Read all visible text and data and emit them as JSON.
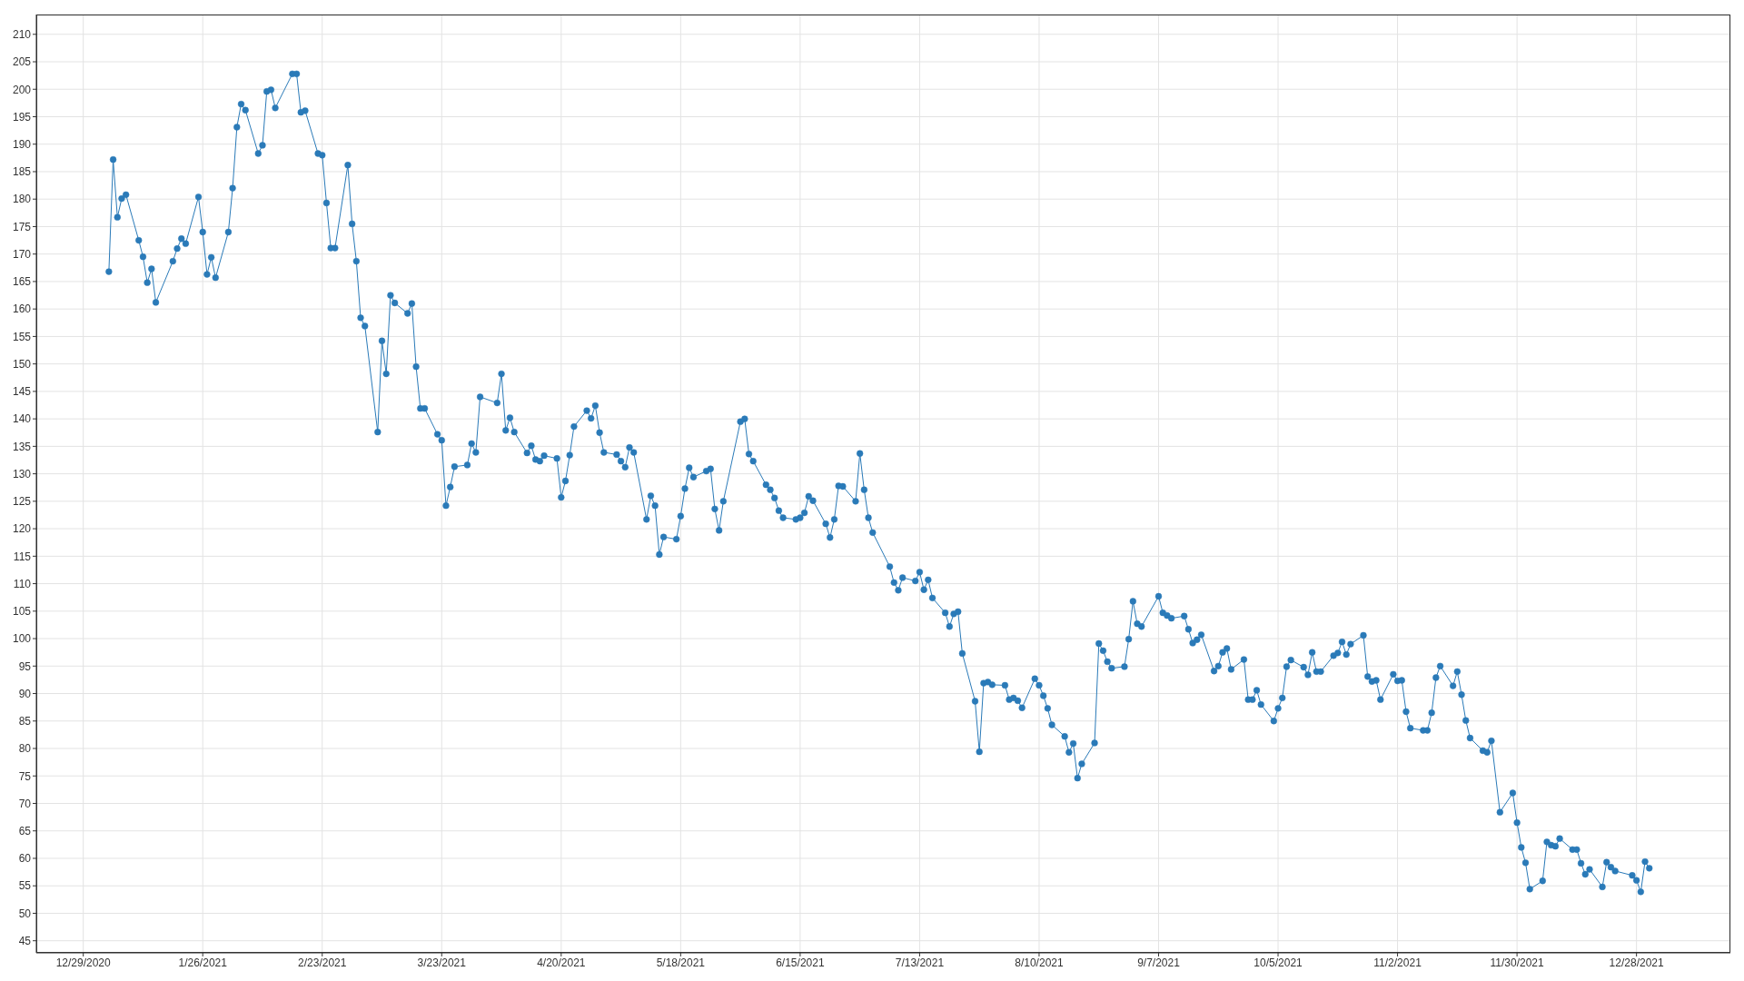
{
  "chart_data": {
    "type": "line",
    "color": "#2a7ab8",
    "marker": "circle",
    "line_style": "solid",
    "grid": true,
    "xlim": [
      "2020-12-18",
      "2022-01-19"
    ],
    "xticks": [
      {
        "value": "2020-12-29",
        "label": "12/29/2020"
      },
      {
        "value": "2021-01-26",
        "label": "1/26/2021"
      },
      {
        "value": "2021-02-23",
        "label": "2/23/2021"
      },
      {
        "value": "2021-03-23",
        "label": "3/23/2021"
      },
      {
        "value": "2021-04-20",
        "label": "4/20/2021"
      },
      {
        "value": "2021-05-18",
        "label": "5/18/2021"
      },
      {
        "value": "2021-06-15",
        "label": "6/15/2021"
      },
      {
        "value": "2021-07-13",
        "label": "7/13/2021"
      },
      {
        "value": "2021-08-10",
        "label": "8/10/2021"
      },
      {
        "value": "2021-09-07",
        "label": "9/7/2021"
      },
      {
        "value": "2021-10-05",
        "label": "10/5/2021"
      },
      {
        "value": "2021-11-02",
        "label": "11/2/2021"
      },
      {
        "value": "2021-11-30",
        "label": "11/30/2021"
      },
      {
        "value": "2021-12-28",
        "label": "12/28/2021"
      }
    ],
    "ylim": [
      42.8,
      213.6
    ],
    "yticks": [
      45,
      50,
      55,
      60,
      65,
      70,
      75,
      80,
      85,
      90,
      95,
      100,
      105,
      110,
      115,
      120,
      125,
      130,
      135,
      140,
      145,
      150,
      155,
      160,
      165,
      170,
      175,
      180,
      185,
      190,
      195,
      200,
      205,
      210
    ],
    "x": [
      "2021-01-04",
      "2021-01-05",
      "2021-01-06",
      "2021-01-07",
      "2021-01-08",
      "2021-01-11",
      "2021-01-12",
      "2021-01-13",
      "2021-01-14",
      "2021-01-15",
      "2021-01-19",
      "2021-01-20",
      "2021-01-21",
      "2021-01-22",
      "2021-01-25",
      "2021-01-26",
      "2021-01-27",
      "2021-01-28",
      "2021-01-29",
      "2021-02-01",
      "2021-02-02",
      "2021-02-03",
      "2021-02-04",
      "2021-02-05",
      "2021-02-08",
      "2021-02-09",
      "2021-02-10",
      "2021-02-11",
      "2021-02-12",
      "2021-02-16",
      "2021-02-17",
      "2021-02-18",
      "2021-02-19",
      "2021-02-22",
      "2021-02-23",
      "2021-02-24",
      "2021-02-25",
      "2021-02-26",
      "2021-03-01",
      "2021-03-02",
      "2021-03-03",
      "2021-03-04",
      "2021-03-05",
      "2021-03-08",
      "2021-03-09",
      "2021-03-10",
      "2021-03-11",
      "2021-03-12",
      "2021-03-15",
      "2021-03-16",
      "2021-03-17",
      "2021-03-18",
      "2021-03-19",
      "2021-03-22",
      "2021-03-23",
      "2021-03-24",
      "2021-03-25",
      "2021-03-26",
      "2021-03-29",
      "2021-03-30",
      "2021-03-31",
      "2021-04-01",
      "2021-04-05",
      "2021-04-06",
      "2021-04-07",
      "2021-04-08",
      "2021-04-09",
      "2021-04-12",
      "2021-04-13",
      "2021-04-14",
      "2021-04-15",
      "2021-04-16",
      "2021-04-19",
      "2021-04-20",
      "2021-04-21",
      "2021-04-22",
      "2021-04-23",
      "2021-04-26",
      "2021-04-27",
      "2021-04-28",
      "2021-04-29",
      "2021-04-30",
      "2021-05-03",
      "2021-05-04",
      "2021-05-05",
      "2021-05-06",
      "2021-05-07",
      "2021-05-10",
      "2021-05-11",
      "2021-05-12",
      "2021-05-13",
      "2021-05-14",
      "2021-05-17",
      "2021-05-18",
      "2021-05-19",
      "2021-05-20",
      "2021-05-21",
      "2021-05-24",
      "2021-05-25",
      "2021-05-26",
      "2021-05-27",
      "2021-05-28",
      "2021-06-01",
      "2021-06-02",
      "2021-06-03",
      "2021-06-04",
      "2021-06-07",
      "2021-06-08",
      "2021-06-09",
      "2021-06-10",
      "2021-06-11",
      "2021-06-14",
      "2021-06-15",
      "2021-06-16",
      "2021-06-17",
      "2021-06-18",
      "2021-06-21",
      "2021-06-22",
      "2021-06-23",
      "2021-06-24",
      "2021-06-25",
      "2021-06-28",
      "2021-06-29",
      "2021-06-30",
      "2021-07-01",
      "2021-07-02",
      "2021-07-06",
      "2021-07-07",
      "2021-07-08",
      "2021-07-09",
      "2021-07-12",
      "2021-07-13",
      "2021-07-14",
      "2021-07-15",
      "2021-07-16",
      "2021-07-19",
      "2021-07-20",
      "2021-07-21",
      "2021-07-22",
      "2021-07-23",
      "2021-07-26",
      "2021-07-27",
      "2021-07-28",
      "2021-07-29",
      "2021-07-30",
      "2021-08-02",
      "2021-08-03",
      "2021-08-04",
      "2021-08-05",
      "2021-08-06",
      "2021-08-09",
      "2021-08-10",
      "2021-08-11",
      "2021-08-12",
      "2021-08-13",
      "2021-08-16",
      "2021-08-17",
      "2021-08-18",
      "2021-08-19",
      "2021-08-20",
      "2021-08-23",
      "2021-08-24",
      "2021-08-25",
      "2021-08-26",
      "2021-08-27",
      "2021-08-30",
      "2021-08-31",
      "2021-09-01",
      "2021-09-02",
      "2021-09-03",
      "2021-09-07",
      "2021-09-08",
      "2021-09-09",
      "2021-09-10",
      "2021-09-13",
      "2021-09-14",
      "2021-09-15",
      "2021-09-16",
      "2021-09-17",
      "2021-09-20",
      "2021-09-21",
      "2021-09-22",
      "2021-09-23",
      "2021-09-24",
      "2021-09-27",
      "2021-09-28",
      "2021-09-29",
      "2021-09-30",
      "2021-10-01",
      "2021-10-04",
      "2021-10-05",
      "2021-10-06",
      "2021-10-07",
      "2021-10-08",
      "2021-10-11",
      "2021-10-12",
      "2021-10-13",
      "2021-10-14",
      "2021-10-15",
      "2021-10-18",
      "2021-10-19",
      "2021-10-20",
      "2021-10-21",
      "2021-10-22",
      "2021-10-25",
      "2021-10-26",
      "2021-10-27",
      "2021-10-28",
      "2021-10-29",
      "2021-11-01",
      "2021-11-02",
      "2021-11-03",
      "2021-11-04",
      "2021-11-05",
      "2021-11-08",
      "2021-11-09",
      "2021-11-10",
      "2021-11-11",
      "2021-11-12",
      "2021-11-15",
      "2021-11-16",
      "2021-11-17",
      "2021-11-18",
      "2021-11-19",
      "2021-11-22",
      "2021-11-23",
      "2021-11-24",
      "2021-11-26",
      "2021-11-29",
      "2021-11-30",
      "2021-12-01",
      "2021-12-02",
      "2021-12-03",
      "2021-12-06",
      "2021-12-07",
      "2021-12-08",
      "2021-12-09",
      "2021-12-10",
      "2021-12-13",
      "2021-12-14",
      "2021-12-15",
      "2021-12-16",
      "2021-12-17",
      "2021-12-20",
      "2021-12-21",
      "2021-12-22",
      "2021-12-23",
      "2021-12-27",
      "2021-12-28",
      "2021-12-29",
      "2021-12-30",
      "2021-12-31"
    ],
    "values": [
      166.8,
      187.2,
      176.7,
      180.1,
      180.8,
      172.5,
      169.5,
      164.8,
      167.3,
      161.2,
      168.7,
      171.0,
      172.8,
      171.9,
      180.4,
      174.0,
      166.3,
      169.4,
      165.7,
      174.0,
      182.0,
      193.1,
      197.3,
      196.2,
      188.3,
      189.8,
      199.6,
      199.9,
      196.6,
      202.8,
      202.8,
      195.8,
      196.1,
      188.3,
      188.0,
      179.3,
      171.1,
      171.1,
      186.2,
      175.5,
      168.7,
      158.4,
      156.9,
      137.6,
      154.2,
      148.2,
      162.5,
      161.1,
      159.2,
      161.0,
      149.5,
      141.9,
      141.9,
      137.2,
      136.1,
      124.2,
      127.6,
      131.3,
      131.6,
      135.5,
      133.9,
      144.0,
      142.9,
      148.2,
      137.9,
      140.2,
      137.6,
      133.8,
      135.1,
      132.6,
      132.3,
      133.3,
      132.8,
      125.7,
      128.7,
      133.4,
      138.6,
      141.5,
      140.1,
      142.4,
      137.5,
      133.9,
      133.5,
      132.3,
      131.2,
      134.8,
      133.9,
      121.7,
      126.0,
      124.2,
      115.3,
      118.5,
      118.1,
      122.3,
      127.3,
      131.1,
      129.4,
      130.5,
      130.9,
      123.6,
      119.7,
      125.0,
      139.5,
      140.0,
      133.6,
      132.3,
      128.0,
      127.1,
      125.6,
      123.3,
      122.0,
      121.7,
      122.0,
      122.9,
      125.9,
      125.1,
      120.9,
      118.4,
      121.7,
      127.8,
      127.7,
      125.0,
      133.7,
      127.1,
      122.0,
      119.3,
      113.1,
      110.2,
      108.8,
      111.1,
      110.5,
      112.1,
      108.9,
      110.7,
      107.4,
      104.7,
      102.2,
      104.5,
      104.9,
      97.3,
      88.6,
      79.4,
      91.9,
      92.1,
      91.6,
      91.5,
      88.9,
      89.2,
      88.7,
      87.4,
      92.7,
      91.5,
      89.6,
      87.3,
      84.3,
      82.2,
      79.3,
      80.9,
      74.6,
      77.2,
      81.0,
      99.1,
      97.8,
      95.8,
      94.6,
      94.9,
      99.9,
      106.8,
      102.7,
      102.2,
      107.7,
      104.7,
      104.2,
      103.7,
      104.1,
      101.7,
      99.2,
      99.8,
      100.7,
      94.1,
      95.0,
      97.5,
      98.2,
      94.4,
      96.2,
      88.9,
      88.9,
      90.6,
      88.0,
      85.0,
      87.3,
      89.2,
      94.9,
      96.1,
      94.8,
      93.4,
      97.5,
      94.0,
      94.0,
      96.9,
      97.4,
      99.4,
      97.1,
      99.0,
      100.6,
      93.1,
      92.2,
      92.4,
      88.9,
      93.5,
      92.3,
      92.4,
      86.7,
      83.7,
      83.3,
      83.3,
      86.5,
      92.9,
      95.0,
      91.4,
      94.0,
      89.8,
      85.1,
      81.9,
      79.6,
      79.3,
      81.4,
      68.4,
      71.9,
      66.5,
      62.0,
      59.2,
      54.4,
      55.9,
      63.0,
      62.4,
      62.2,
      63.6,
      61.6,
      61.6,
      59.1,
      57.1,
      58.0,
      54.8,
      59.3,
      58.4,
      57.7,
      56.9,
      56.0,
      53.9,
      59.4,
      58.2
    ]
  }
}
